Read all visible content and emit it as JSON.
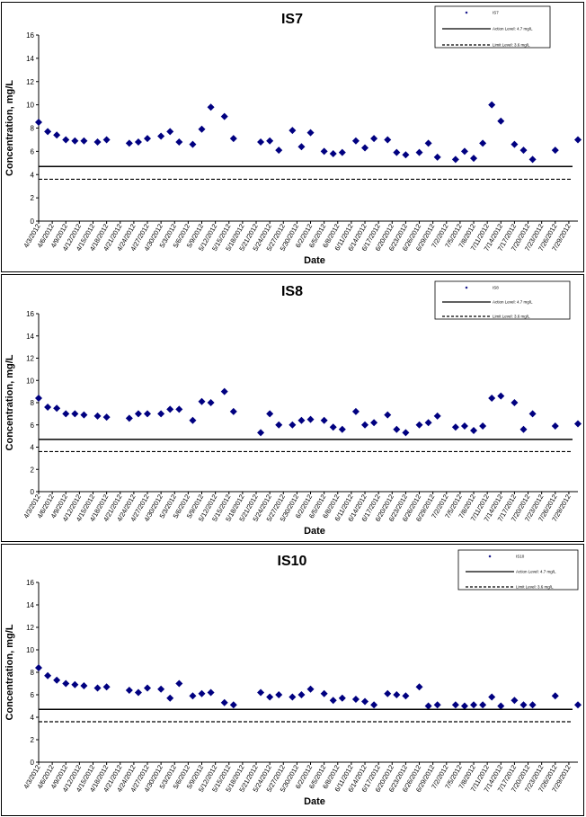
{
  "chart_data": [
    {
      "type": "scatter",
      "title": "IS7",
      "xlabel": "Date",
      "ylabel": "Concentration, mg/L",
      "ylim": [
        0,
        16
      ],
      "yticks": [
        "0",
        "2",
        "4",
        "6",
        "8",
        "10",
        "12",
        "14",
        "16"
      ],
      "xlim": [
        "4/3/2012",
        "7/31/2012"
      ],
      "xticks": [
        "4/3/2012",
        "4/6/2012",
        "4/9/2012",
        "4/12/2012",
        "4/15/2012",
        "4/18/2012",
        "4/21/2012",
        "4/24/2012",
        "4/27/2012",
        "4/30/2012",
        "5/3/2012",
        "5/6/2012",
        "5/9/2012",
        "5/12/2012",
        "5/15/2012",
        "5/18/2012",
        "5/21/2012",
        "5/24/2012",
        "5/27/2012",
        "5/30/2012",
        "6/2/2012",
        "6/5/2012",
        "6/8/2012",
        "6/11/2012",
        "6/14/2012",
        "6/17/2012",
        "6/20/2012",
        "6/23/2012",
        "6/26/2012",
        "6/29/2012",
        "7/2/2012",
        "7/5/2012",
        "7/8/2012",
        "7/11/2012",
        "7/14/2012",
        "7/17/2012",
        "7/20/2012",
        "7/23/2012",
        "7/26/2012",
        "7/29/2012"
      ],
      "grid": false,
      "legend_position": "top-right",
      "series": [
        {
          "name": "IS7",
          "color": "#000080",
          "marker": "diamond",
          "x": [
            "4/3/2012",
            "4/5/2012",
            "4/7/2012",
            "4/9/2012",
            "4/11/2012",
            "4/13/2012",
            "4/16/2012",
            "4/18/2012",
            "4/23/2012",
            "4/25/2012",
            "4/27/2012",
            "4/30/2012",
            "5/2/2012",
            "5/4/2012",
            "5/7/2012",
            "5/9/2012",
            "5/11/2012",
            "5/14/2012",
            "5/16/2012",
            "5/22/2012",
            "5/24/2012",
            "5/26/2012",
            "5/29/2012",
            "5/31/2012",
            "6/2/2012",
            "6/5/2012",
            "6/7/2012",
            "6/9/2012",
            "6/12/2012",
            "6/14/2012",
            "6/16/2012",
            "6/19/2012",
            "6/21/2012",
            "6/23/2012",
            "6/26/2012",
            "6/28/2012",
            "6/30/2012",
            "7/4/2012",
            "7/6/2012",
            "7/8/2012",
            "7/10/2012",
            "7/12/2012",
            "7/14/2012",
            "7/17/2012",
            "7/19/2012",
            "7/21/2012",
            "7/26/2012",
            "7/31/2012"
          ],
          "y": [
            8.5,
            7.7,
            7.4,
            7.0,
            6.9,
            6.9,
            6.8,
            7.0,
            6.7,
            6.8,
            7.1,
            7.3,
            7.7,
            6.8,
            6.6,
            7.9,
            9.8,
            9.0,
            7.1,
            6.8,
            6.9,
            6.1,
            7.8,
            6.4,
            7.6,
            6.0,
            5.8,
            5.9,
            6.9,
            6.3,
            7.1,
            7.0,
            5.9,
            5.7,
            5.9,
            6.7,
            5.5,
            5.3,
            6.0,
            5.4,
            6.7,
            10.0,
            8.6,
            6.6,
            6.1,
            5.3,
            6.1,
            7.0
          ]
        },
        {
          "name": "Action Level: 4.7 mg/L",
          "type": "hline",
          "value": 4.7,
          "color": "#000000",
          "style": "solid"
        },
        {
          "name": "Limit Level: 3.6 mg/L",
          "type": "hline",
          "value": 3.6,
          "color": "#000000",
          "style": "dashed"
        }
      ]
    },
    {
      "type": "scatter",
      "title": "IS8",
      "xlabel": "Date",
      "ylabel": "Concentration, mg/L",
      "ylim": [
        0,
        16
      ],
      "yticks": [
        "0",
        "2",
        "4",
        "6",
        "8",
        "10",
        "12",
        "14",
        "16"
      ],
      "xlim": [
        "4/3/2012",
        "7/31/2012"
      ],
      "xticks": [
        "4/3/2012",
        "4/6/2012",
        "4/9/2012",
        "4/12/2012",
        "4/15/2012",
        "4/18/2012",
        "4/21/2012",
        "4/24/2012",
        "4/27/2012",
        "4/30/2012",
        "5/3/2012",
        "5/6/2012",
        "5/9/2012",
        "5/12/2012",
        "5/15/2012",
        "5/18/2012",
        "5/21/2012",
        "5/24/2012",
        "5/27/2012",
        "5/30/2012",
        "6/2/2012",
        "6/5/2012",
        "6/8/2012",
        "6/11/2012",
        "6/14/2012",
        "6/17/2012",
        "6/20/2012",
        "6/23/2012",
        "6/26/2012",
        "6/29/2012",
        "7/2/2012",
        "7/5/2012",
        "7/8/2012",
        "7/11/2012",
        "7/14/2012",
        "7/17/2012",
        "7/20/2012",
        "7/23/2012",
        "7/26/2012",
        "7/29/2012"
      ],
      "grid": false,
      "legend_position": "top-right",
      "series": [
        {
          "name": "IS8",
          "color": "#000080",
          "marker": "diamond",
          "x": [
            "4/3/2012",
            "4/5/2012",
            "4/7/2012",
            "4/9/2012",
            "4/11/2012",
            "4/13/2012",
            "4/16/2012",
            "4/18/2012",
            "4/23/2012",
            "4/25/2012",
            "4/27/2012",
            "4/30/2012",
            "5/2/2012",
            "5/4/2012",
            "5/7/2012",
            "5/9/2012",
            "5/11/2012",
            "5/14/2012",
            "5/16/2012",
            "5/22/2012",
            "5/24/2012",
            "5/26/2012",
            "5/29/2012",
            "5/31/2012",
            "6/2/2012",
            "6/5/2012",
            "6/7/2012",
            "6/9/2012",
            "6/12/2012",
            "6/14/2012",
            "6/16/2012",
            "6/19/2012",
            "6/21/2012",
            "6/23/2012",
            "6/26/2012",
            "6/28/2012",
            "6/30/2012",
            "7/4/2012",
            "7/6/2012",
            "7/8/2012",
            "7/10/2012",
            "7/12/2012",
            "7/14/2012",
            "7/17/2012",
            "7/19/2012",
            "7/21/2012",
            "7/26/2012",
            "7/31/2012"
          ],
          "y": [
            8.4,
            7.6,
            7.5,
            7.0,
            7.0,
            6.9,
            6.8,
            6.7,
            6.6,
            7.0,
            7.0,
            7.0,
            7.4,
            7.4,
            6.4,
            8.1,
            8.0,
            9.0,
            7.2,
            5.3,
            7.0,
            6.0,
            6.0,
            6.4,
            6.5,
            6.4,
            5.8,
            5.6,
            7.2,
            6.0,
            6.2,
            6.9,
            5.6,
            5.3,
            6.0,
            6.2,
            6.8,
            5.8,
            5.9,
            5.5,
            5.9,
            8.4,
            8.6,
            8.0,
            5.6,
            7.0,
            5.9,
            6.1
          ]
        },
        {
          "name": "Action Level: 4.7 mg/L",
          "type": "hline",
          "value": 4.7,
          "color": "#000000",
          "style": "solid"
        },
        {
          "name": "Limit Level: 3.6 mg/L",
          "type": "hline",
          "value": 3.6,
          "color": "#000000",
          "style": "dashed"
        }
      ]
    },
    {
      "type": "scatter",
      "title": "IS10",
      "xlabel": "Date",
      "ylabel": "Concentration, mg/L",
      "ylim": [
        0,
        16
      ],
      "yticks": [
        "0",
        "2",
        "4",
        "6",
        "8",
        "10",
        "12",
        "14",
        "16"
      ],
      "xlim": [
        "4/3/2012",
        "7/31/2012"
      ],
      "xticks": [
        "4/3/2012",
        "4/6/2012",
        "4/9/2012",
        "4/12/2012",
        "4/15/2012",
        "4/18/2012",
        "4/21/2012",
        "4/24/2012",
        "4/27/2012",
        "4/30/2012",
        "5/3/2012",
        "5/6/2012",
        "5/9/2012",
        "5/12/2012",
        "5/15/2012",
        "5/18/2012",
        "5/21/2012",
        "5/24/2012",
        "5/27/2012",
        "5/30/2012",
        "6/2/2012",
        "6/5/2012",
        "6/8/2012",
        "6/11/2012",
        "6/14/2012",
        "6/17/2012",
        "6/20/2012",
        "6/23/2012",
        "6/26/2012",
        "6/29/2012",
        "7/2/2012",
        "7/5/2012",
        "7/8/2012",
        "7/11/2012",
        "7/14/2012",
        "7/17/2012",
        "7/20/2012",
        "7/23/2012",
        "7/26/2012",
        "7/29/2012"
      ],
      "grid": false,
      "legend_position": "top-right",
      "series": [
        {
          "name": "IS10",
          "color": "#000080",
          "marker": "diamond",
          "x": [
            "4/3/2012",
            "4/5/2012",
            "4/7/2012",
            "4/9/2012",
            "4/11/2012",
            "4/13/2012",
            "4/16/2012",
            "4/18/2012",
            "4/23/2012",
            "4/25/2012",
            "4/27/2012",
            "4/30/2012",
            "5/2/2012",
            "5/4/2012",
            "5/7/2012",
            "5/9/2012",
            "5/11/2012",
            "5/14/2012",
            "5/16/2012",
            "5/22/2012",
            "5/24/2012",
            "5/26/2012",
            "5/29/2012",
            "5/31/2012",
            "6/2/2012",
            "6/5/2012",
            "6/7/2012",
            "6/9/2012",
            "6/12/2012",
            "6/14/2012",
            "6/16/2012",
            "6/19/2012",
            "6/21/2012",
            "6/23/2012",
            "6/26/2012",
            "6/28/2012",
            "6/30/2012",
            "7/4/2012",
            "7/6/2012",
            "7/8/2012",
            "7/10/2012",
            "7/12/2012",
            "7/14/2012",
            "7/17/2012",
            "7/19/2012",
            "7/21/2012",
            "7/26/2012",
            "7/31/2012"
          ],
          "y": [
            8.4,
            7.7,
            7.3,
            7.0,
            6.9,
            6.8,
            6.6,
            6.7,
            6.4,
            6.2,
            6.6,
            6.5,
            5.7,
            7.0,
            5.9,
            6.1,
            6.2,
            5.3,
            5.1,
            6.2,
            5.8,
            6.0,
            5.8,
            6.0,
            6.5,
            6.1,
            5.5,
            5.7,
            5.6,
            5.4,
            5.1,
            6.1,
            6.0,
            5.9,
            6.7,
            5.0,
            5.1,
            5.1,
            5.0,
            5.1,
            5.1,
            5.8,
            5.0,
            5.5,
            5.1,
            5.1,
            5.9,
            5.1
          ]
        },
        {
          "name": "Action Level: 4.7 mg/L",
          "type": "hline",
          "value": 4.7,
          "color": "#000000",
          "style": "solid"
        },
        {
          "name": "Limit Level: 3.6 mg/L",
          "type": "hline",
          "value": 3.6,
          "color": "#000000",
          "style": "dashed"
        }
      ]
    }
  ]
}
